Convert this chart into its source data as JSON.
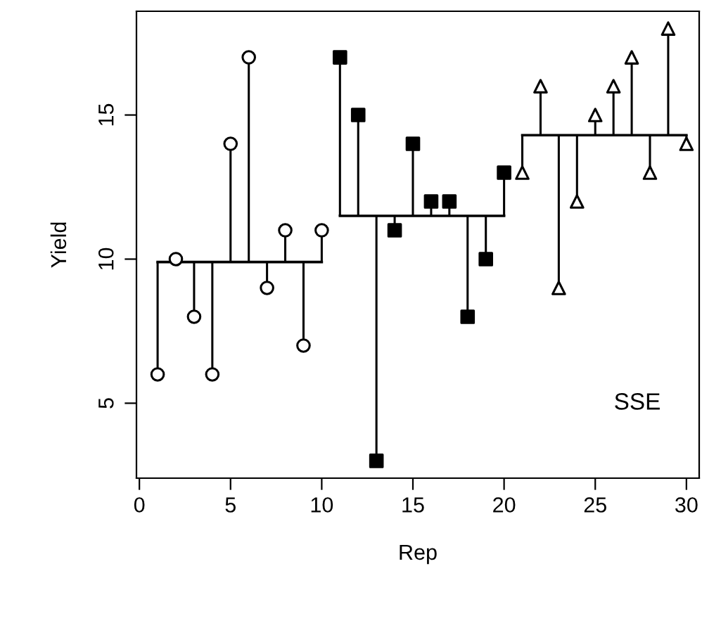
{
  "chart_data": {
    "type": "scatter",
    "xlabel": "Rep",
    "ylabel": "Yield",
    "xlim": [
      -0.16,
      30.7
    ],
    "ylim": [
      2.4,
      18.6
    ],
    "xticks": [
      0,
      5,
      10,
      15,
      20,
      25,
      30
    ],
    "yticks": [
      5,
      10,
      15
    ],
    "grid": false,
    "legend": false,
    "annotations": [
      "SSE"
    ],
    "series": [
      {
        "marker": "circle",
        "color": "#000000",
        "x": [
          1,
          2,
          3,
          4,
          5,
          6,
          7,
          8,
          9,
          10
        ],
        "values": [
          6,
          10,
          8,
          6,
          14,
          17,
          9,
          11,
          7,
          11
        ],
        "errors": [
          [
            6,
            9.9
          ],
          [
            9.9,
            10
          ],
          [
            8,
            9.9
          ],
          [
            6,
            9.9
          ],
          [
            9.9,
            14
          ],
          [
            9.9,
            17
          ],
          [
            9,
            9.9
          ],
          [
            9.9,
            11
          ],
          [
            7,
            9.9
          ],
          [
            9.9,
            11
          ]
        ]
      },
      {
        "marker": "square",
        "color": "#000000",
        "x": [
          11,
          12,
          13,
          14,
          15,
          16,
          17,
          18,
          19,
          20
        ],
        "values": [
          17,
          15,
          3,
          11,
          14,
          12,
          12,
          8,
          10,
          13
        ],
        "errors": [
          [
            11.5,
            17
          ],
          [
            11.5,
            15
          ],
          [
            3,
            11.5
          ],
          [
            11,
            11.5
          ],
          [
            11.5,
            14
          ],
          [
            11.5,
            12
          ],
          [
            11.5,
            12
          ],
          [
            8,
            11.5
          ],
          [
            10,
            11.5
          ],
          [
            11.5,
            13
          ]
        ]
      },
      {
        "marker": "triangle",
        "color": "#000000",
        "x": [
          21,
          22,
          23,
          24,
          25,
          26,
          27,
          28,
          29,
          30
        ],
        "values": [
          13,
          16,
          9,
          12,
          15,
          16,
          17,
          13,
          18,
          14
        ],
        "errors": [
          [
            13,
            14.3
          ],
          [
            14.3,
            16
          ],
          [
            9,
            14.3
          ],
          [
            12,
            14.3
          ],
          [
            14.3,
            15
          ],
          [
            14.3,
            16
          ],
          [
            14.3,
            17
          ],
          [
            13,
            14.3
          ],
          [
            14.3,
            18
          ],
          [
            14,
            14.3
          ]
        ]
      },
      {
        "type": "line",
        "marker": "none",
        "color": "#000000",
        "x": [
          1,
          10
        ],
        "values": [
          9.9,
          9.9
        ]
      },
      {
        "type": "line",
        "marker": "none",
        "color": "#000000",
        "x": [
          11,
          20
        ],
        "values": [
          11.5,
          11.5
        ]
      },
      {
        "type": "line",
        "marker": "none",
        "color": "#000000",
        "x": [
          21,
          30
        ],
        "values": [
          14.3,
          14.3
        ]
      }
    ]
  }
}
